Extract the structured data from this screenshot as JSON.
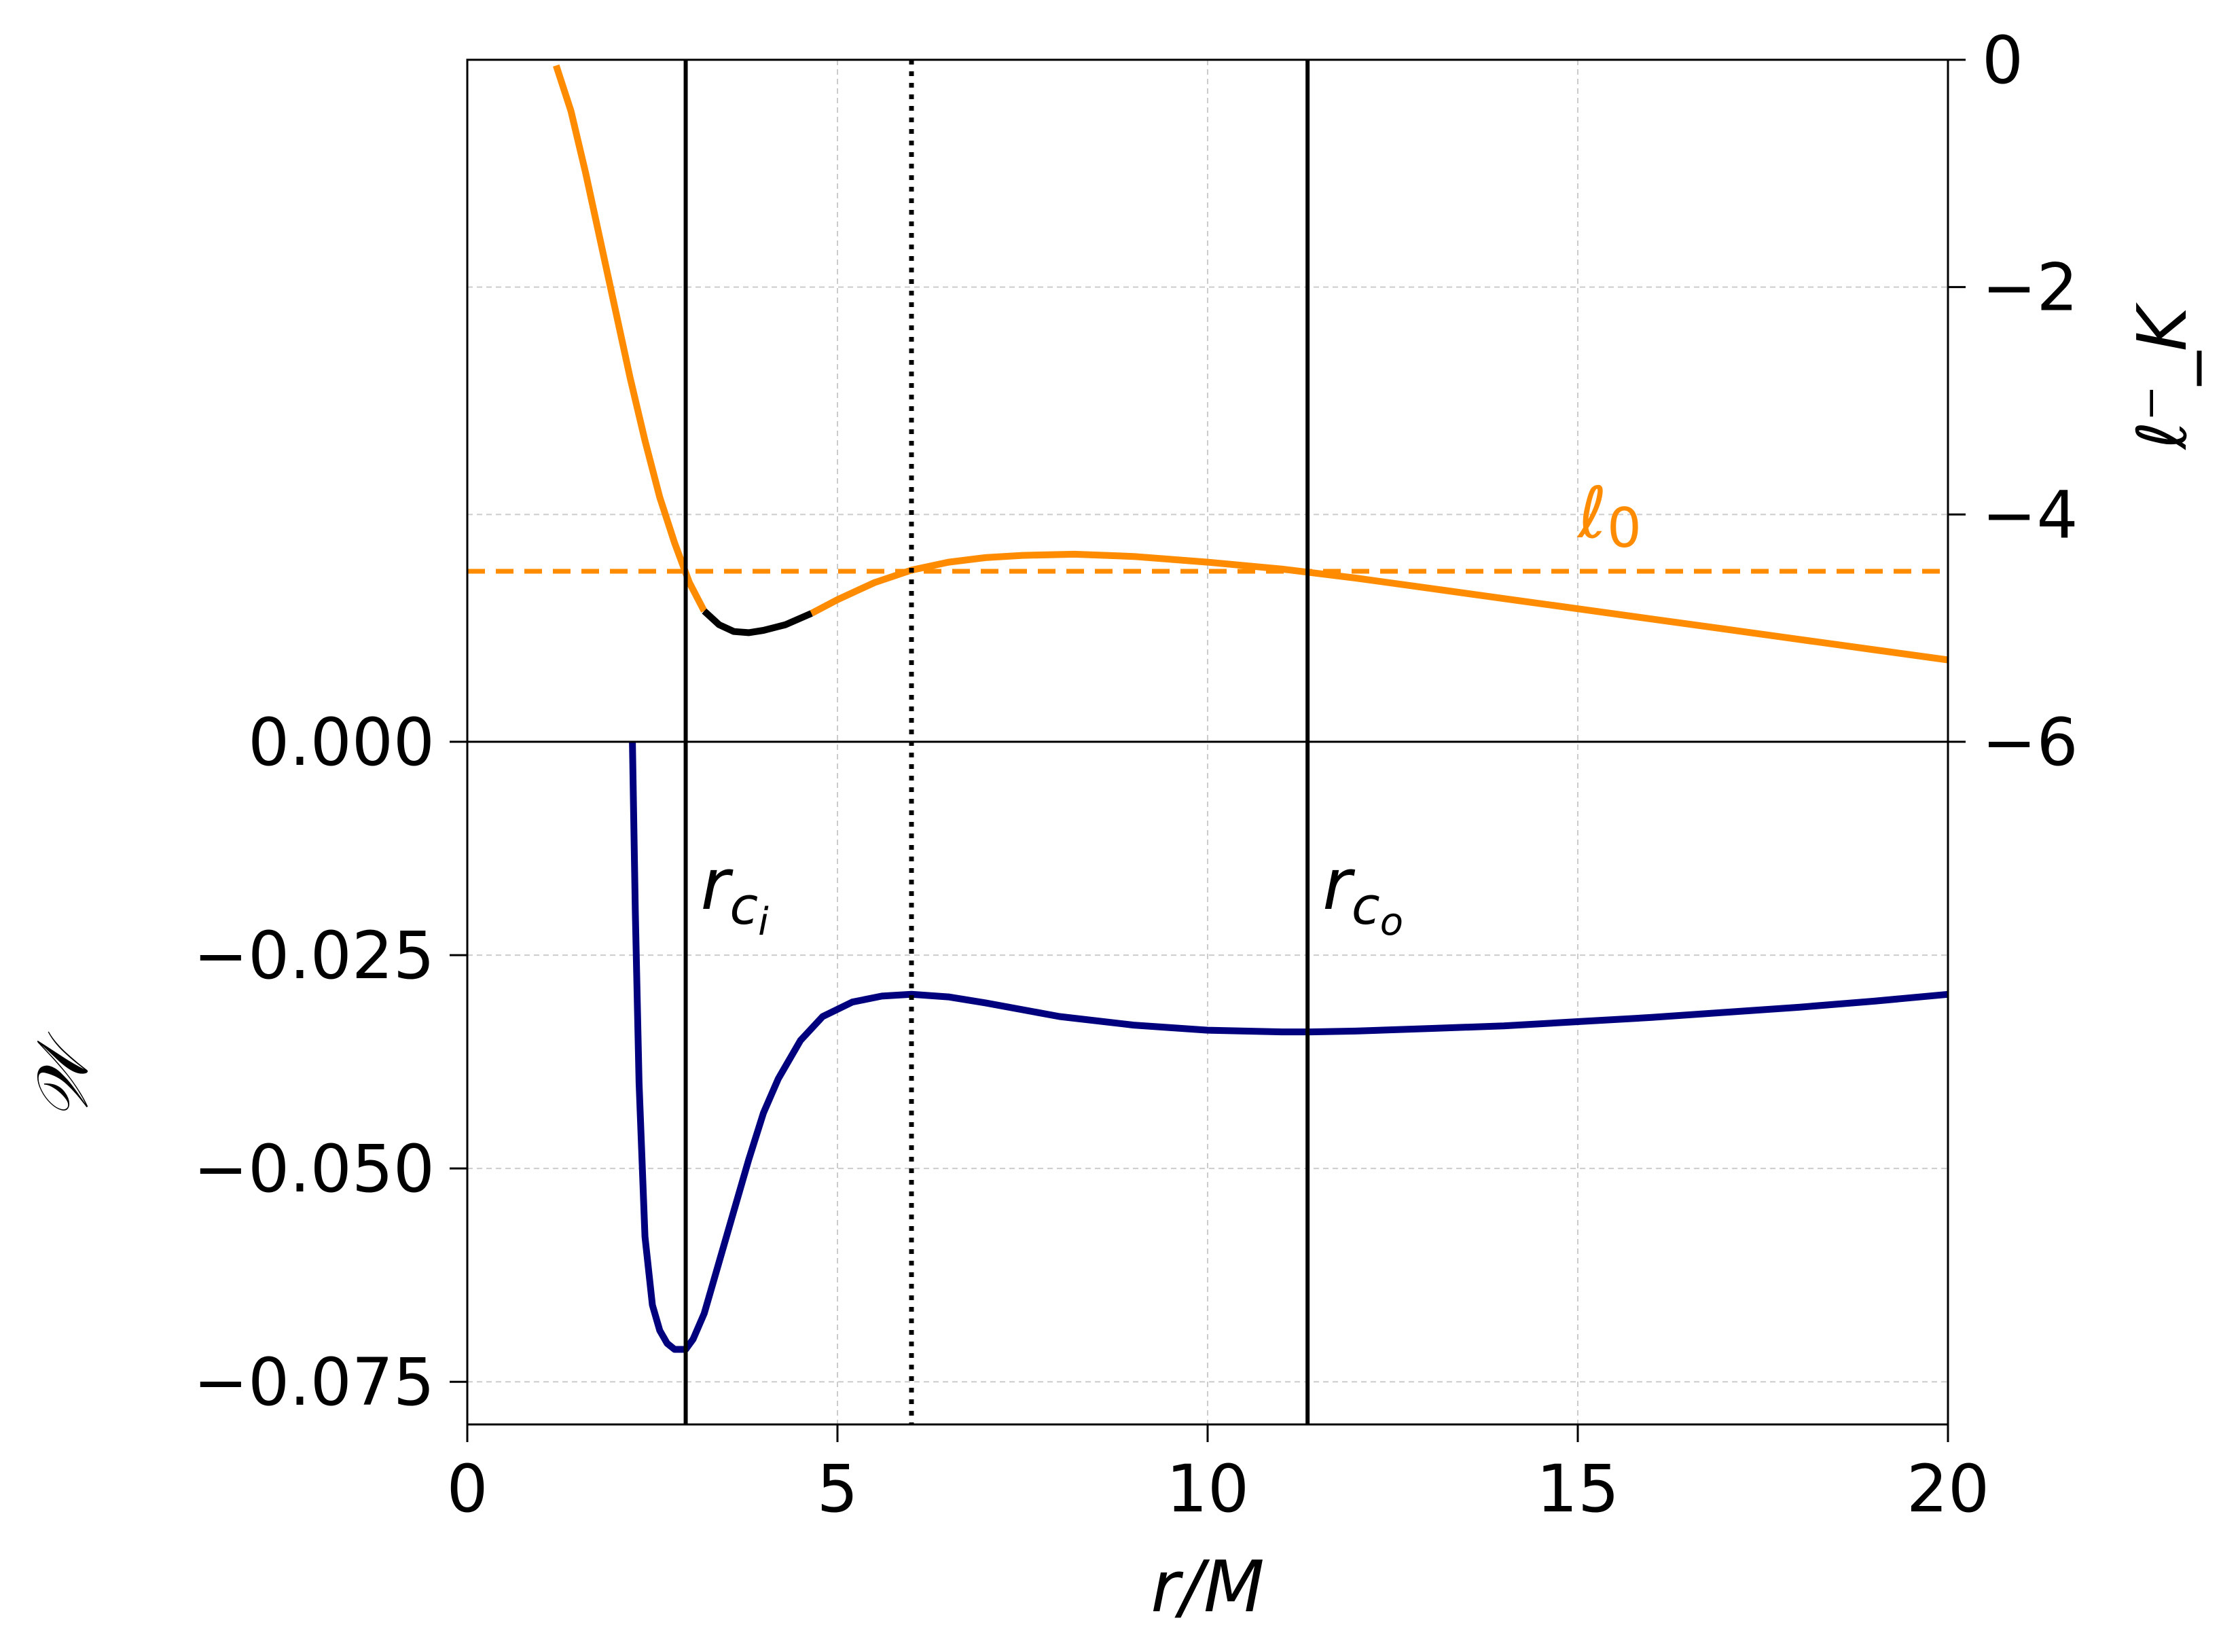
{
  "chart_data": {
    "type": "line",
    "x": {
      "label": "r/M",
      "lim": [
        0,
        20
      ],
      "ticks": [
        0,
        5,
        10,
        15,
        20
      ],
      "tick_labels": [
        "0",
        "5",
        "10",
        "15",
        "20"
      ]
    },
    "bottom_panel": {
      "ylabel": "𝒲",
      "ylim": [
        -0.08,
        0.0
      ],
      "ticks": [
        0.0,
        -0.025,
        -0.05,
        -0.075
      ],
      "tick_labels": [
        "0.000",
        "−0.025",
        "−0.050",
        "−0.075"
      ],
      "series": [
        {
          "color": "#00007f",
          "points": [
            [
              2.23,
              0.0
            ],
            [
              2.27,
              -0.02
            ],
            [
              2.32,
              -0.04
            ],
            [
              2.4,
              -0.058
            ],
            [
              2.5,
              -0.066
            ],
            [
              2.6,
              -0.069
            ],
            [
              2.7,
              -0.0705
            ],
            [
              2.8,
              -0.0712
            ],
            [
              2.95,
              -0.0712
            ],
            [
              3.05,
              -0.07
            ],
            [
              3.2,
              -0.067
            ],
            [
              3.4,
              -0.061
            ],
            [
              3.6,
              -0.055
            ],
            [
              3.8,
              -0.049
            ],
            [
              4.0,
              -0.0435
            ],
            [
              4.2,
              -0.0395
            ],
            [
              4.5,
              -0.035
            ],
            [
              4.8,
              -0.0322
            ],
            [
              5.2,
              -0.0305
            ],
            [
              5.6,
              -0.0298
            ],
            [
              6.0,
              -0.0296
            ],
            [
              6.5,
              -0.0299
            ],
            [
              7.0,
              -0.0306
            ],
            [
              8.0,
              -0.0322
            ],
            [
              9.0,
              -0.0332
            ],
            [
              10.0,
              -0.0338
            ],
            [
              11.0,
              -0.034
            ],
            [
              11.4,
              -0.034
            ],
            [
              12.0,
              -0.0339
            ],
            [
              13.0,
              -0.0336
            ],
            [
              14.0,
              -0.0333
            ],
            [
              15.0,
              -0.0328
            ],
            [
              16.0,
              -0.0323
            ],
            [
              17.0,
              -0.0317
            ],
            [
              18.0,
              -0.0311
            ],
            [
              19.0,
              -0.0304
            ],
            [
              20.0,
              -0.0296
            ]
          ]
        }
      ]
    },
    "top_panel": {
      "ylabel": "ℓ⁻_K",
      "ylim": [
        -6,
        0
      ],
      "ticks": [
        0,
        -2,
        -4,
        -6
      ],
      "tick_labels": [
        "0",
        "−2",
        "−4",
        "−6"
      ],
      "axis_side": "right",
      "series": [
        {
          "color": "#ff8c00",
          "segment": "orange",
          "points": [
            [
              1.2,
              -0.05
            ],
            [
              1.4,
              -0.45
            ],
            [
              1.6,
              -1.0
            ],
            [
              1.8,
              -1.6
            ],
            [
              2.0,
              -2.2
            ],
            [
              2.2,
              -2.8
            ],
            [
              2.4,
              -3.35
            ],
            [
              2.6,
              -3.85
            ],
            [
              2.8,
              -4.25
            ],
            [
              3.0,
              -4.6
            ],
            [
              3.2,
              -4.85
            ]
          ]
        },
        {
          "color": "#000000",
          "segment": "black",
          "points": [
            [
              3.2,
              -4.85
            ],
            [
              3.4,
              -4.97
            ],
            [
              3.6,
              -5.03
            ],
            [
              3.8,
              -5.04
            ],
            [
              4.0,
              -5.02
            ],
            [
              4.3,
              -4.97
            ],
            [
              4.65,
              -4.87
            ]
          ]
        },
        {
          "color": "#ff8c00",
          "segment": "orange",
          "points": [
            [
              4.65,
              -4.87
            ],
            [
              5.0,
              -4.75
            ],
            [
              5.5,
              -4.6
            ],
            [
              6.0,
              -4.49
            ],
            [
              6.5,
              -4.42
            ],
            [
              7.0,
              -4.38
            ],
            [
              7.5,
              -4.36
            ],
            [
              8.2,
              -4.35
            ],
            [
              9.0,
              -4.37
            ],
            [
              10.0,
              -4.42
            ],
            [
              11.0,
              -4.48
            ],
            [
              12.0,
              -4.56
            ],
            [
              13.0,
              -4.65
            ],
            [
              14.0,
              -4.74
            ],
            [
              15.0,
              -4.83
            ],
            [
              16.0,
              -4.92
            ],
            [
              17.0,
              -5.01
            ],
            [
              18.0,
              -5.1
            ],
            [
              19.0,
              -5.19
            ],
            [
              20.0,
              -5.28
            ]
          ]
        }
      ],
      "reference_line": {
        "label": "ℓ0",
        "label_main": "ℓ",
        "label_sub": "0",
        "value": -4.5,
        "color": "#ff8c00",
        "style": "dashed"
      }
    },
    "vertical_lines": [
      {
        "x": 2.95,
        "style": "solid",
        "label_main": "r",
        "label_sub": "c",
        "label_subsub": "i"
      },
      {
        "x": 6.0,
        "style": "dotted"
      },
      {
        "x": 11.35,
        "style": "solid",
        "label_main": "r",
        "label_sub": "c",
        "label_subsub": "o"
      }
    ],
    "grid": true
  }
}
